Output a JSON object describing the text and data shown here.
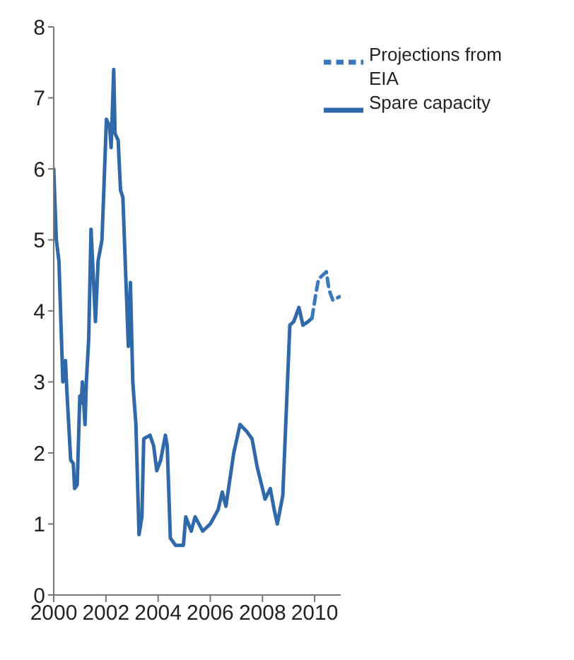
{
  "chart_data": {
    "type": "line",
    "xlim": [
      2000,
      2011
    ],
    "xticks": [
      2000,
      2002,
      2004,
      2006,
      2008,
      2010
    ],
    "ylim": [
      0,
      8
    ],
    "yticks": [
      0,
      1,
      2,
      3,
      4,
      5,
      6,
      7,
      8
    ],
    "grid": false,
    "legend": "top right",
    "marker": "none",
    "series": [
      {
        "name": "Spare capacity",
        "color": "#2f69aa",
        "line_style": "solid",
        "x": [
          2000.0,
          2000.1,
          2000.2,
          2000.35,
          2000.45,
          2000.5,
          2000.65,
          2000.75,
          2000.8,
          2000.9,
          2001.0,
          2001.05,
          2001.1,
          2001.2,
          2001.25,
          2001.34,
          2001.43,
          2001.6,
          2001.7,
          2001.85,
          2002.02,
          2002.14,
          2002.2,
          2002.3,
          2002.35,
          2002.47,
          2002.56,
          2002.65,
          2002.86,
          2002.94,
          2003.03,
          2003.15,
          2003.27,
          2003.38,
          2003.45,
          2003.69,
          2003.83,
          2003.95,
          2004.1,
          2004.28,
          2004.35,
          2004.47,
          2004.67,
          2004.97,
          2005.06,
          2005.27,
          2005.42,
          2005.71,
          2006.0,
          2006.3,
          2006.46,
          2006.6,
          2006.9,
          2007.14,
          2007.4,
          2007.6,
          2007.8,
          2008.0,
          2008.1,
          2008.3,
          2008.45,
          2008.57,
          2008.78,
          2009.05,
          2009.2,
          2009.4,
          2009.55,
          2009.75,
          2009.9
        ],
        "values": [
          6.0,
          5.0,
          4.7,
          3.0,
          3.3,
          2.9,
          1.9,
          1.85,
          1.5,
          1.55,
          2.8,
          2.7,
          3.0,
          2.4,
          3.0,
          3.6,
          5.15,
          3.85,
          4.7,
          5.0,
          6.7,
          6.6,
          6.3,
          7.4,
          6.5,
          6.4,
          5.7,
          5.6,
          3.5,
          4.4,
          3.0,
          2.4,
          0.85,
          1.1,
          2.2,
          2.25,
          2.1,
          1.75,
          1.9,
          2.25,
          2.1,
          0.8,
          0.7,
          0.7,
          1.1,
          0.9,
          1.1,
          0.9,
          1.0,
          1.2,
          1.45,
          1.25,
          2.0,
          2.4,
          2.3,
          2.2,
          1.8,
          1.5,
          1.35,
          1.5,
          1.2,
          1.0,
          1.4,
          3.8,
          3.85,
          4.05,
          3.8,
          3.85,
          3.9
        ]
      },
      {
        "name": "Projections from EIA",
        "color": "#3a78c0",
        "line_style": "dashed",
        "x": [
          2009.9,
          2010.05,
          2010.15,
          2010.3,
          2010.45,
          2010.55,
          2010.7,
          2010.95
        ],
        "values": [
          3.9,
          4.25,
          4.45,
          4.5,
          4.55,
          4.3,
          4.15,
          4.2
        ]
      }
    ]
  }
}
